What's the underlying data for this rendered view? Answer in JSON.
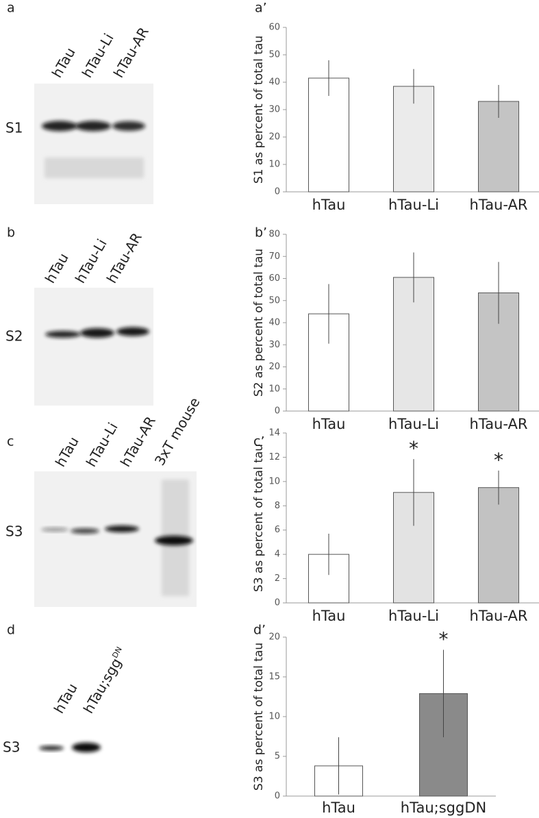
{
  "chart_data": [
    {
      "type": "bar",
      "panel": "a’",
      "ylabel": "S1 as percent of total tau",
      "categories": [
        "hTau",
        "hTau-Li",
        "hTau-AR"
      ],
      "values": [
        41.5,
        38.5,
        33
      ],
      "errors": [
        6.5,
        6.3,
        6
      ],
      "colors": [
        "#ffffff",
        "#ebebeb",
        "#c4c4c4"
      ],
      "ylim": [
        0,
        60
      ],
      "yticks": [
        0,
        10,
        20,
        30,
        40,
        50,
        60
      ],
      "annotations": [
        null,
        null,
        null
      ]
    },
    {
      "type": "bar",
      "panel": "b’",
      "ylabel": "S2 as percent of total tau",
      "categories": [
        "hTau",
        "hTau-Li",
        "hTau-AR"
      ],
      "values": [
        44,
        60.5,
        53.5
      ],
      "errors": [
        13.5,
        11.3,
        14
      ],
      "colors": [
        "#ffffff",
        "#e6e6e6",
        "#c4c4c4"
      ],
      "ylim": [
        0,
        80
      ],
      "yticks": [
        0,
        10,
        20,
        30,
        40,
        50,
        60,
        70,
        80
      ],
      "annotations": [
        null,
        null,
        null
      ]
    },
    {
      "type": "bar",
      "panel": "c’",
      "ylabel": "S3 as percent of total tau",
      "categories": [
        "hTau",
        "hTau-Li",
        "hTau-AR"
      ],
      "values": [
        4,
        9.1,
        9.5
      ],
      "errors": [
        1.7,
        2.75,
        1.4
      ],
      "colors": [
        "#ffffff",
        "#e3e3e3",
        "#c2c2c2"
      ],
      "ylim": [
        0,
        14
      ],
      "yticks": [
        0,
        2,
        4,
        6,
        8,
        10,
        12,
        14
      ],
      "annotations": [
        null,
        "*",
        "*"
      ]
    },
    {
      "type": "bar",
      "panel": "d’",
      "ylabel": "S3 as percent of total tau",
      "categories": [
        "hTau",
        "hTau;sggDN"
      ],
      "values": [
        3.8,
        12.9
      ],
      "errors": [
        3.6,
        5.5
      ],
      "colors": [
        "#ffffff",
        "#8a8a8a"
      ],
      "ylim": [
        0,
        20
      ],
      "yticks": [
        0,
        5,
        10,
        15,
        20
      ],
      "annotations": [
        null,
        "*"
      ]
    }
  ],
  "blots": [
    {
      "panel": "a",
      "row_label": "S1",
      "lanes": [
        "hTau",
        "hTau-Li",
        "hTau-AR"
      ]
    },
    {
      "panel": "b",
      "row_label": "S2",
      "lanes": [
        "hTau",
        "hTau-Li",
        "hTau-AR"
      ]
    },
    {
      "panel": "c",
      "row_label": "S3",
      "lanes": [
        "hTau",
        "hTau-Li",
        "hTau-AR",
        "3xT mouse"
      ]
    },
    {
      "panel": "d",
      "row_label": "S3",
      "lanes": [
        "hTau",
        "hTau;sgg"
      ],
      "superscript": "DN"
    }
  ]
}
